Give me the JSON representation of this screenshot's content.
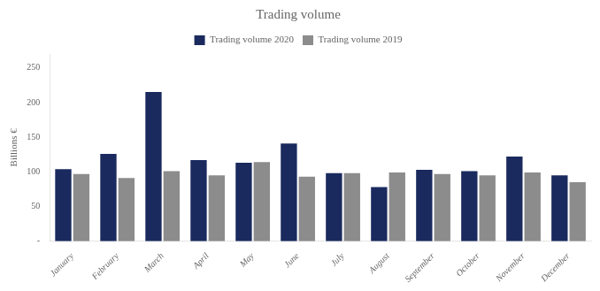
{
  "chart_data": {
    "type": "bar",
    "title": "Trading volume",
    "ylabel": "Billions €",
    "categories": [
      "January",
      "February",
      "March",
      "April",
      "May",
      "June",
      "July",
      "August",
      "September",
      "October",
      "November",
      "December"
    ],
    "series": [
      {
        "name": "Trading volume 2020",
        "color": "#1a2a5e",
        "values": [
          104,
          126,
          215,
          117,
          113,
          141,
          98,
          78,
          103,
          101,
          122,
          95
        ]
      },
      {
        "name": "Trading volume 2019",
        "color": "#8c8c8c",
        "values": [
          97,
          91,
          101,
          95,
          114,
          93,
          98,
          99,
          97,
          95,
          99,
          85
        ]
      }
    ],
    "ylim": [
      0,
      270
    ],
    "yticks": [
      {
        "value": 0,
        "label": "-"
      },
      50,
      100,
      150,
      200,
      250
    ],
    "grid": false,
    "legend": "top"
  }
}
